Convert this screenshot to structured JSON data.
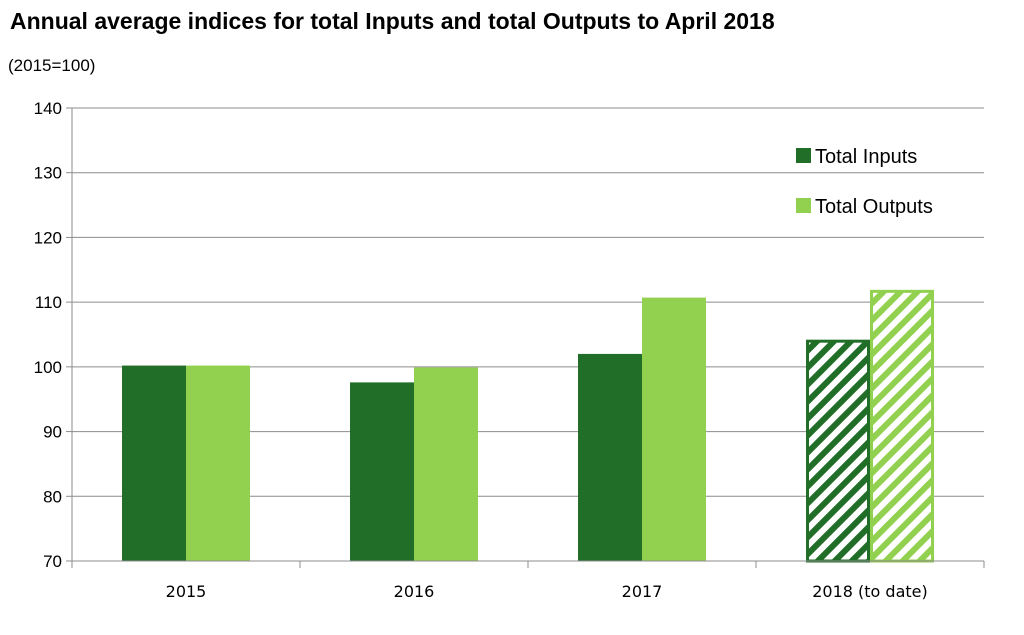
{
  "chart_data": {
    "type": "bar",
    "title": "Annual average indices for total Inputs and total Outputs to April 2018",
    "unit_label": "(2015=100)",
    "categories": [
      "2015",
      "2016",
      "2017",
      "2018 (to date)"
    ],
    "series": [
      {
        "name": "Total Inputs",
        "values": [
          100.2,
          97.6,
          102.0,
          104.2
        ],
        "color": "#216e28"
      },
      {
        "name": "Total Outputs",
        "values": [
          100.2,
          99.9,
          110.7,
          111.9
        ],
        "color": "#92d050"
      }
    ],
    "hatched_categories": [
      "2018 (to date)"
    ],
    "ylim": [
      70,
      140
    ],
    "yticks": [
      70,
      80,
      90,
      100,
      110,
      120,
      130,
      140
    ],
    "grid": true,
    "legend_position": "top-right"
  }
}
